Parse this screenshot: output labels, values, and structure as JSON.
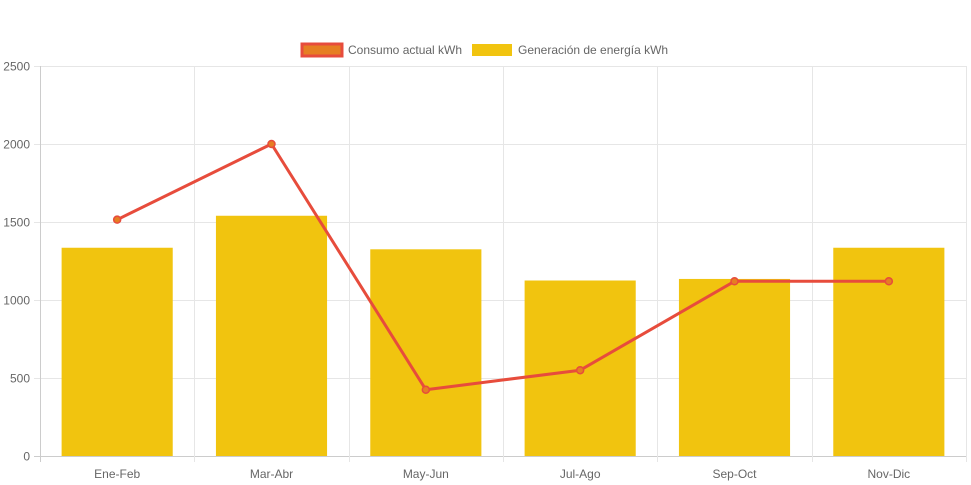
{
  "chart_data": {
    "type": "bar",
    "categories": [
      "Ene-Feb",
      "Mar-Abr",
      "May-Jun",
      "Jul-Ago",
      "Sep-Oct",
      "Nov-Dic"
    ],
    "series": [
      {
        "name": "Consumo actual kWh",
        "type": "line",
        "color": "#e74c3c",
        "fill_color": "#e67e22",
        "values": [
          1515,
          2000,
          425,
          550,
          1120,
          1120
        ]
      },
      {
        "name": "Generación de energía kWh",
        "type": "bar",
        "color": "#f1c40f",
        "values": [
          1335,
          1540,
          1325,
          1125,
          1135,
          1335
        ]
      }
    ],
    "y_ticks": [
      "0",
      "500",
      "1000",
      "1500",
      "2000",
      "2500"
    ],
    "ylim": [
      0,
      2500
    ],
    "grid": true,
    "legend_position": "top"
  }
}
